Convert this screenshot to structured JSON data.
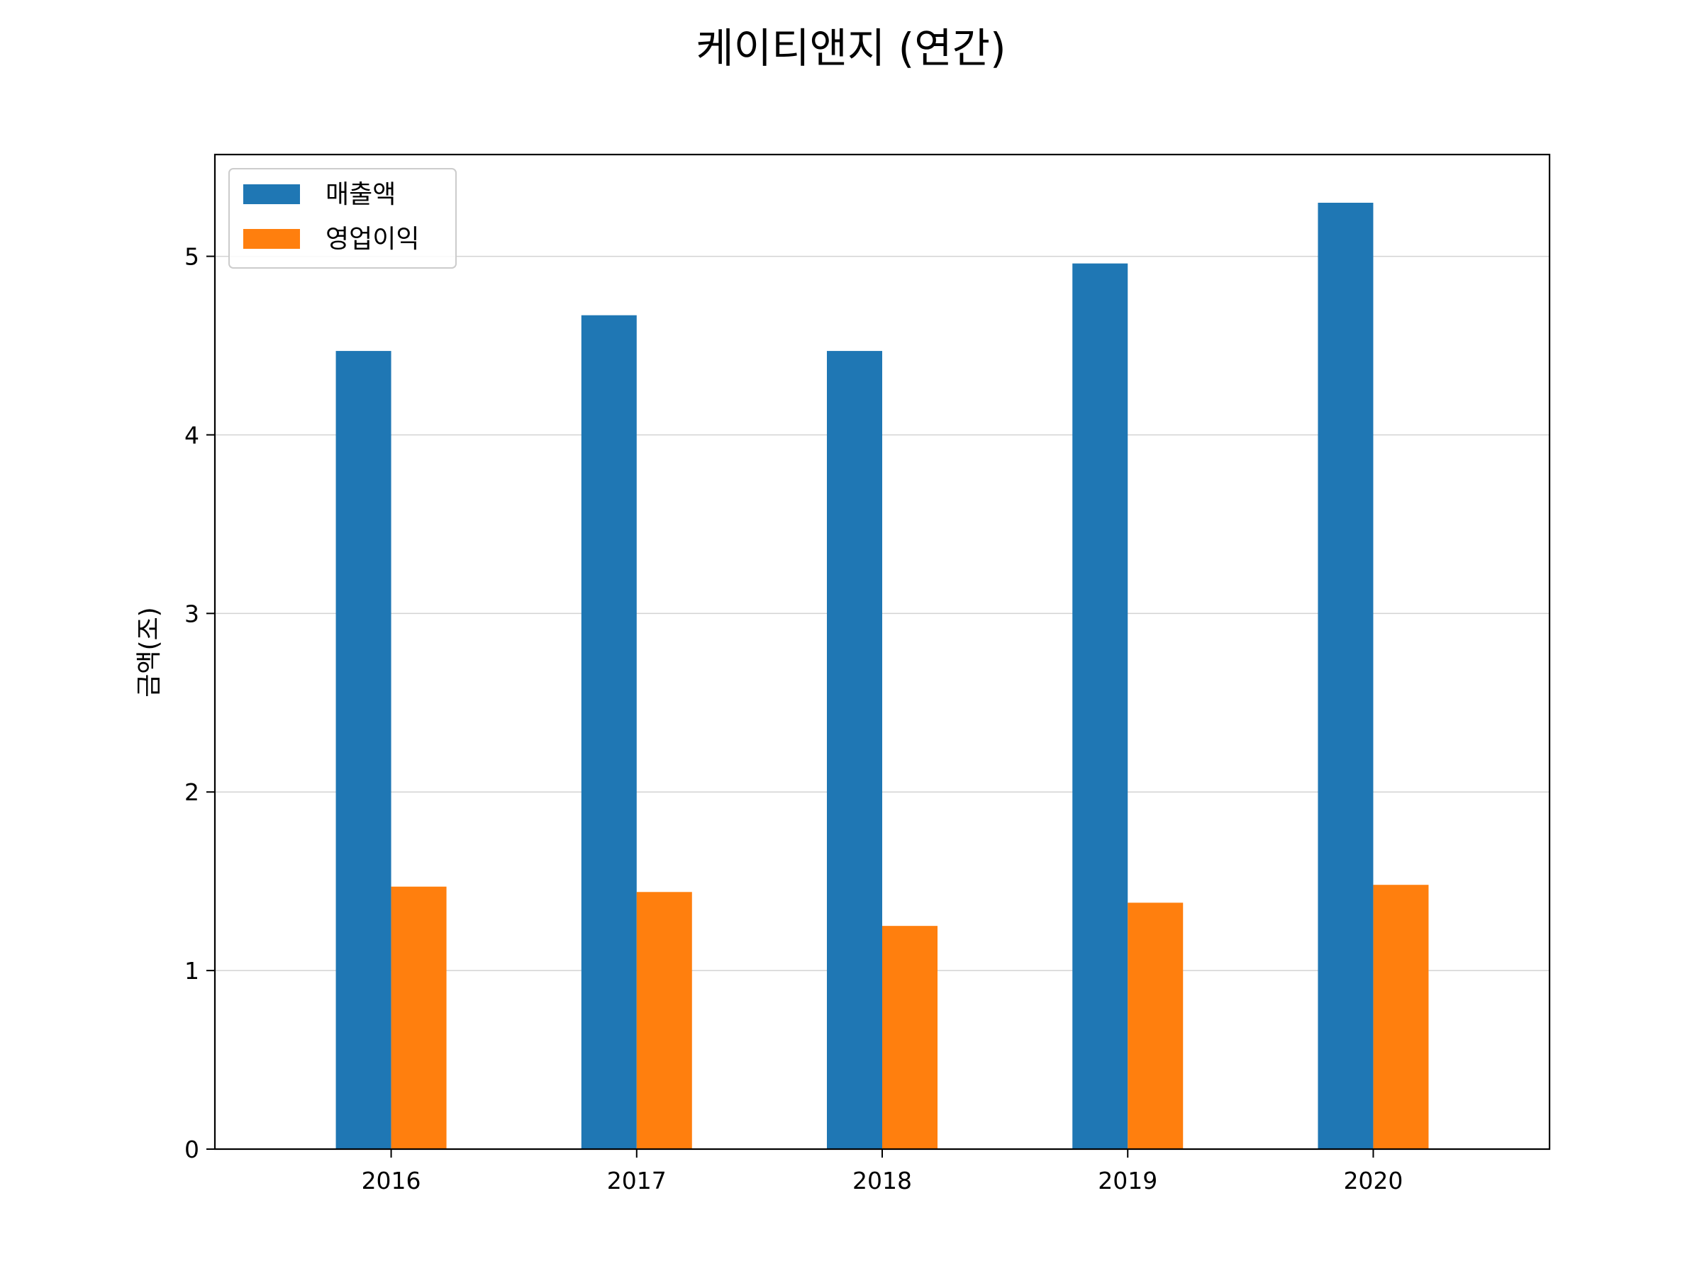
{
  "chart_data": {
    "type": "bar",
    "title": "케이티앤지 (연간)",
    "xlabel": "",
    "ylabel": "금액(조)",
    "categories": [
      "2016",
      "2017",
      "2018",
      "2019",
      "2020"
    ],
    "series": [
      {
        "name": "매출액",
        "color": "#1f77b4",
        "values": [
          4.47,
          4.67,
          4.47,
          4.96,
          5.3
        ]
      },
      {
        "name": "영업이익",
        "color": "#ff7f0e",
        "values": [
          1.47,
          1.44,
          1.25,
          1.38,
          1.48
        ]
      }
    ],
    "ylim": [
      0,
      5.57
    ],
    "yticks": [
      0,
      1,
      2,
      3,
      4,
      5
    ],
    "grid": "y",
    "legend_position": "top-left"
  }
}
